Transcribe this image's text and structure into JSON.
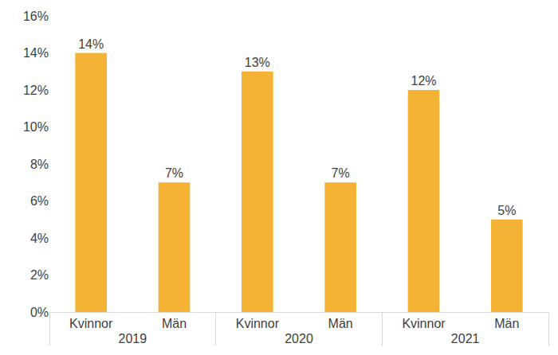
{
  "chart_data": {
    "type": "bar",
    "categories": [
      [
        "2019",
        "Kvinnor"
      ],
      [
        "2019",
        "Män"
      ],
      [
        "2020",
        "Kvinnor"
      ],
      [
        "2020",
        "Män"
      ],
      [
        "2021",
        "Kvinnor"
      ],
      [
        "2021",
        "Män"
      ]
    ],
    "values": [
      14,
      7,
      13,
      7,
      12,
      5
    ],
    "value_labels": [
      "14%",
      "7%",
      "13%",
      "7%",
      "12%",
      "5%"
    ],
    "color": "#f5b335",
    "ylim": [
      0,
      16
    ],
    "yticks": [
      {
        "value": 0,
        "label": "0%"
      },
      {
        "value": 2,
        "label": "2%"
      },
      {
        "value": 4,
        "label": "4%"
      },
      {
        "value": 6,
        "label": "6%"
      },
      {
        "value": 8,
        "label": "8%"
      },
      {
        "value": 10,
        "label": "10%"
      },
      {
        "value": 12,
        "label": "12%"
      },
      {
        "value": 14,
        "label": "14%"
      },
      {
        "value": 16,
        "label": "16%"
      }
    ],
    "grid": false,
    "data_labels": true
  }
}
